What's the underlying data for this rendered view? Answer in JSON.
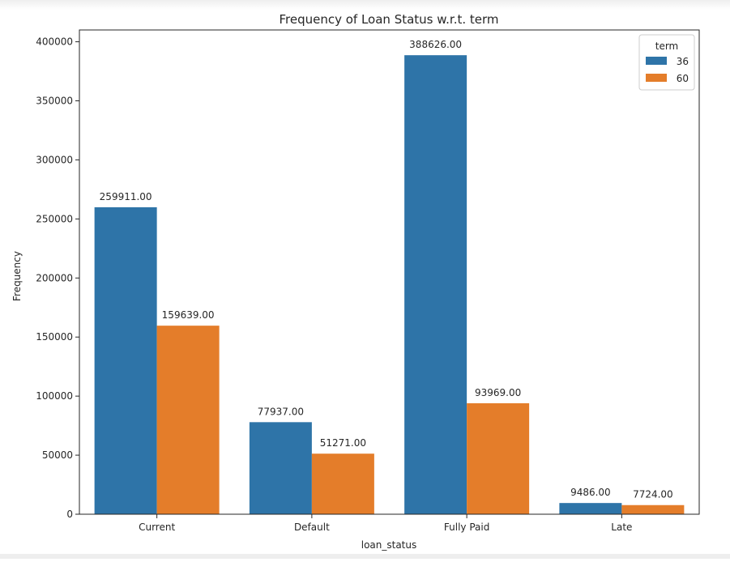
{
  "chart_data": {
    "type": "bar",
    "title": "Frequency of Loan Status w.r.t. term",
    "xlabel": "loan_status",
    "ylabel": "Frequency",
    "categories": [
      "Current",
      "Default",
      "Fully Paid",
      "Late"
    ],
    "series": [
      {
        "name": "36",
        "values": [
          259911,
          77937,
          388626,
          9486
        ],
        "color": "#2e74a8"
      },
      {
        "name": "60",
        "values": [
          159639,
          51271,
          93969,
          7724
        ],
        "color": "#e47d2a"
      }
    ],
    "data_labels": [
      [
        "259911.00",
        "77937.00",
        "388626.00",
        "9486.00"
      ],
      [
        "159639.00",
        "51271.00",
        "93969.00",
        "7724.00"
      ]
    ],
    "ylim": [
      0,
      410000
    ],
    "yticks": [
      0,
      50000,
      100000,
      150000,
      200000,
      250000,
      300000,
      350000,
      400000
    ],
    "ytick_labels": [
      "0",
      "50000",
      "100000",
      "150000",
      "200000",
      "250000",
      "300000",
      "350000",
      "400000"
    ],
    "legend": {
      "title": "term",
      "position": "top-right"
    },
    "grid": false
  }
}
